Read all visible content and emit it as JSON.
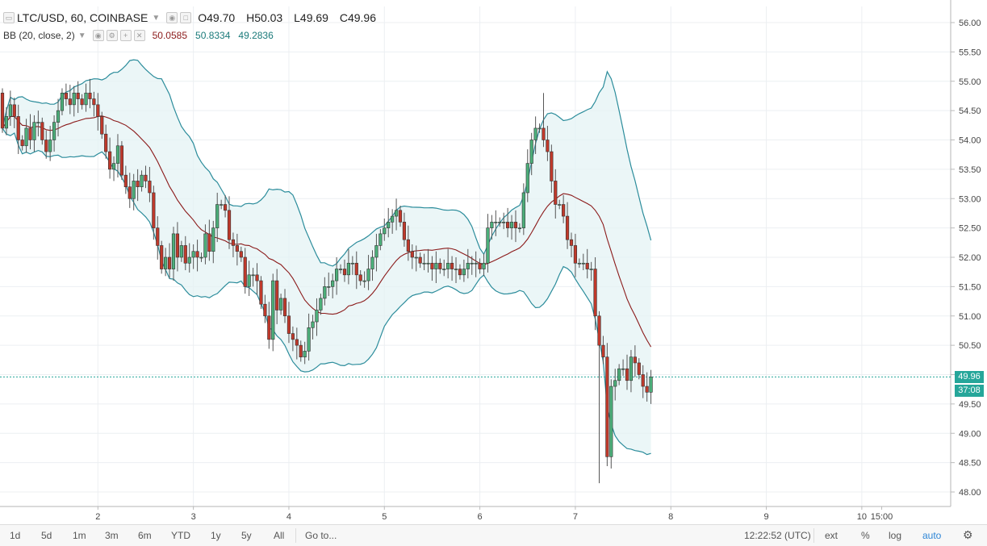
{
  "header": {
    "symbol": "LTC/USD, 60, COINBASE",
    "ohlc": {
      "o": "O49.70",
      "h": "H50.03",
      "l": "L49.69",
      "c": "C49.96"
    },
    "indicator": "BB (20, close, 2)",
    "bb_values": {
      "basis": "50.0585",
      "upper": "50.8334",
      "lower": "49.2836"
    }
  },
  "price_tags": {
    "last_price": "49.96",
    "countdown": "37:08"
  },
  "toolbar": {
    "ranges": [
      "1d",
      "5d",
      "1m",
      "3m",
      "6m",
      "YTD",
      "1y",
      "5y",
      "All"
    ],
    "goto": "Go to...",
    "clock": "12:22:52 (UTC)",
    "ext": "ext",
    "percent": "%",
    "log": "log",
    "auto": "auto"
  },
  "colors": {
    "up": "#4caf7a",
    "down": "#c0392b",
    "band": "#2b8c9b",
    "basis": "#8b1a1a",
    "fill": "#e4f3f4"
  },
  "chart_data": {
    "type": "candlestick",
    "title": "LTC/USD, 60, COINBASE",
    "ylim": [
      47.7,
      56.3
    ],
    "y_ticks": [
      "56.00",
      "55.50",
      "55.00",
      "54.50",
      "54.00",
      "53.50",
      "53.00",
      "52.50",
      "52.00",
      "51.50",
      "51.00",
      "50.50",
      "50.00",
      "49.50",
      "49.00",
      "48.50",
      "48.00"
    ],
    "x_ticks": [
      {
        "label": "2",
        "i": 24
      },
      {
        "label": "3",
        "i": 48
      },
      {
        "label": "4",
        "i": 72
      },
      {
        "label": "5",
        "i": 96
      },
      {
        "label": "6",
        "i": 120
      },
      {
        "label": "7",
        "i": 144
      },
      {
        "label": "8",
        "i": 168
      },
      {
        "label": "9",
        "i": 192
      },
      {
        "label": "10",
        "i": 216
      },
      {
        "label": "15:00",
        "i": 221
      }
    ],
    "close_series": [
      54.2,
      54.4,
      54.6,
      54.4,
      54.0,
      53.9,
      54.2,
      54.0,
      54.3,
      54.3,
      54.0,
      53.8,
      54.0,
      54.3,
      54.5,
      54.8,
      54.7,
      54.6,
      54.8,
      54.7,
      54.6,
      54.8,
      54.7,
      54.6,
      54.4,
      54.1,
      53.8,
      53.5,
      53.6,
      53.9,
      53.4,
      53.2,
      53.0,
      53.3,
      53.2,
      53.4,
      53.3,
      53.1,
      52.5,
      52.2,
      51.8,
      52.0,
      51.8,
      52.4,
      52.0,
      52.2,
      51.9,
      52.0,
      52.1,
      52.0,
      52.0,
      52.4,
      52.1,
      52.5,
      52.9,
      52.9,
      52.8,
      52.3,
      52.2,
      52.1,
      52.0,
      51.5,
      51.7,
      51.7,
      51.6,
      51.2,
      51.0,
      50.6,
      51.6,
      51.1,
      51.3,
      51.0,
      50.7,
      50.6,
      50.5,
      50.3,
      50.4,
      50.8,
      50.9,
      51.1,
      51.3,
      51.5,
      51.5,
      51.6,
      51.8,
      51.8,
      51.7,
      51.9,
      51.9,
      51.7,
      51.6,
      51.6,
      51.8,
      52.0,
      52.2,
      52.4,
      52.5,
      52.6,
      52.7,
      52.8,
      52.6,
      52.3,
      52.1,
      52.0,
      52.0,
      51.9,
      51.9,
      51.9,
      51.8,
      51.9,
      51.8,
      51.8,
      51.9,
      51.8,
      51.8,
      51.7,
      51.8,
      51.9,
      51.9,
      51.9,
      51.8,
      51.9,
      52.5,
      52.6,
      52.6,
      52.6,
      52.6,
      52.5,
      52.6,
      52.5,
      52.5,
      53.1,
      53.6,
      54.0,
      54.2,
      54.2,
      54.0,
      53.8,
      53.3,
      52.9,
      52.9,
      52.7,
      52.3,
      52.2,
      51.9,
      51.9,
      51.9,
      51.8,
      51.8,
      51.0,
      50.5,
      50.3,
      48.6,
      49.8,
      49.9,
      50.1,
      50.1,
      49.9,
      50.3,
      50.2,
      50.0,
      49.8,
      49.7,
      49.96
    ]
  }
}
